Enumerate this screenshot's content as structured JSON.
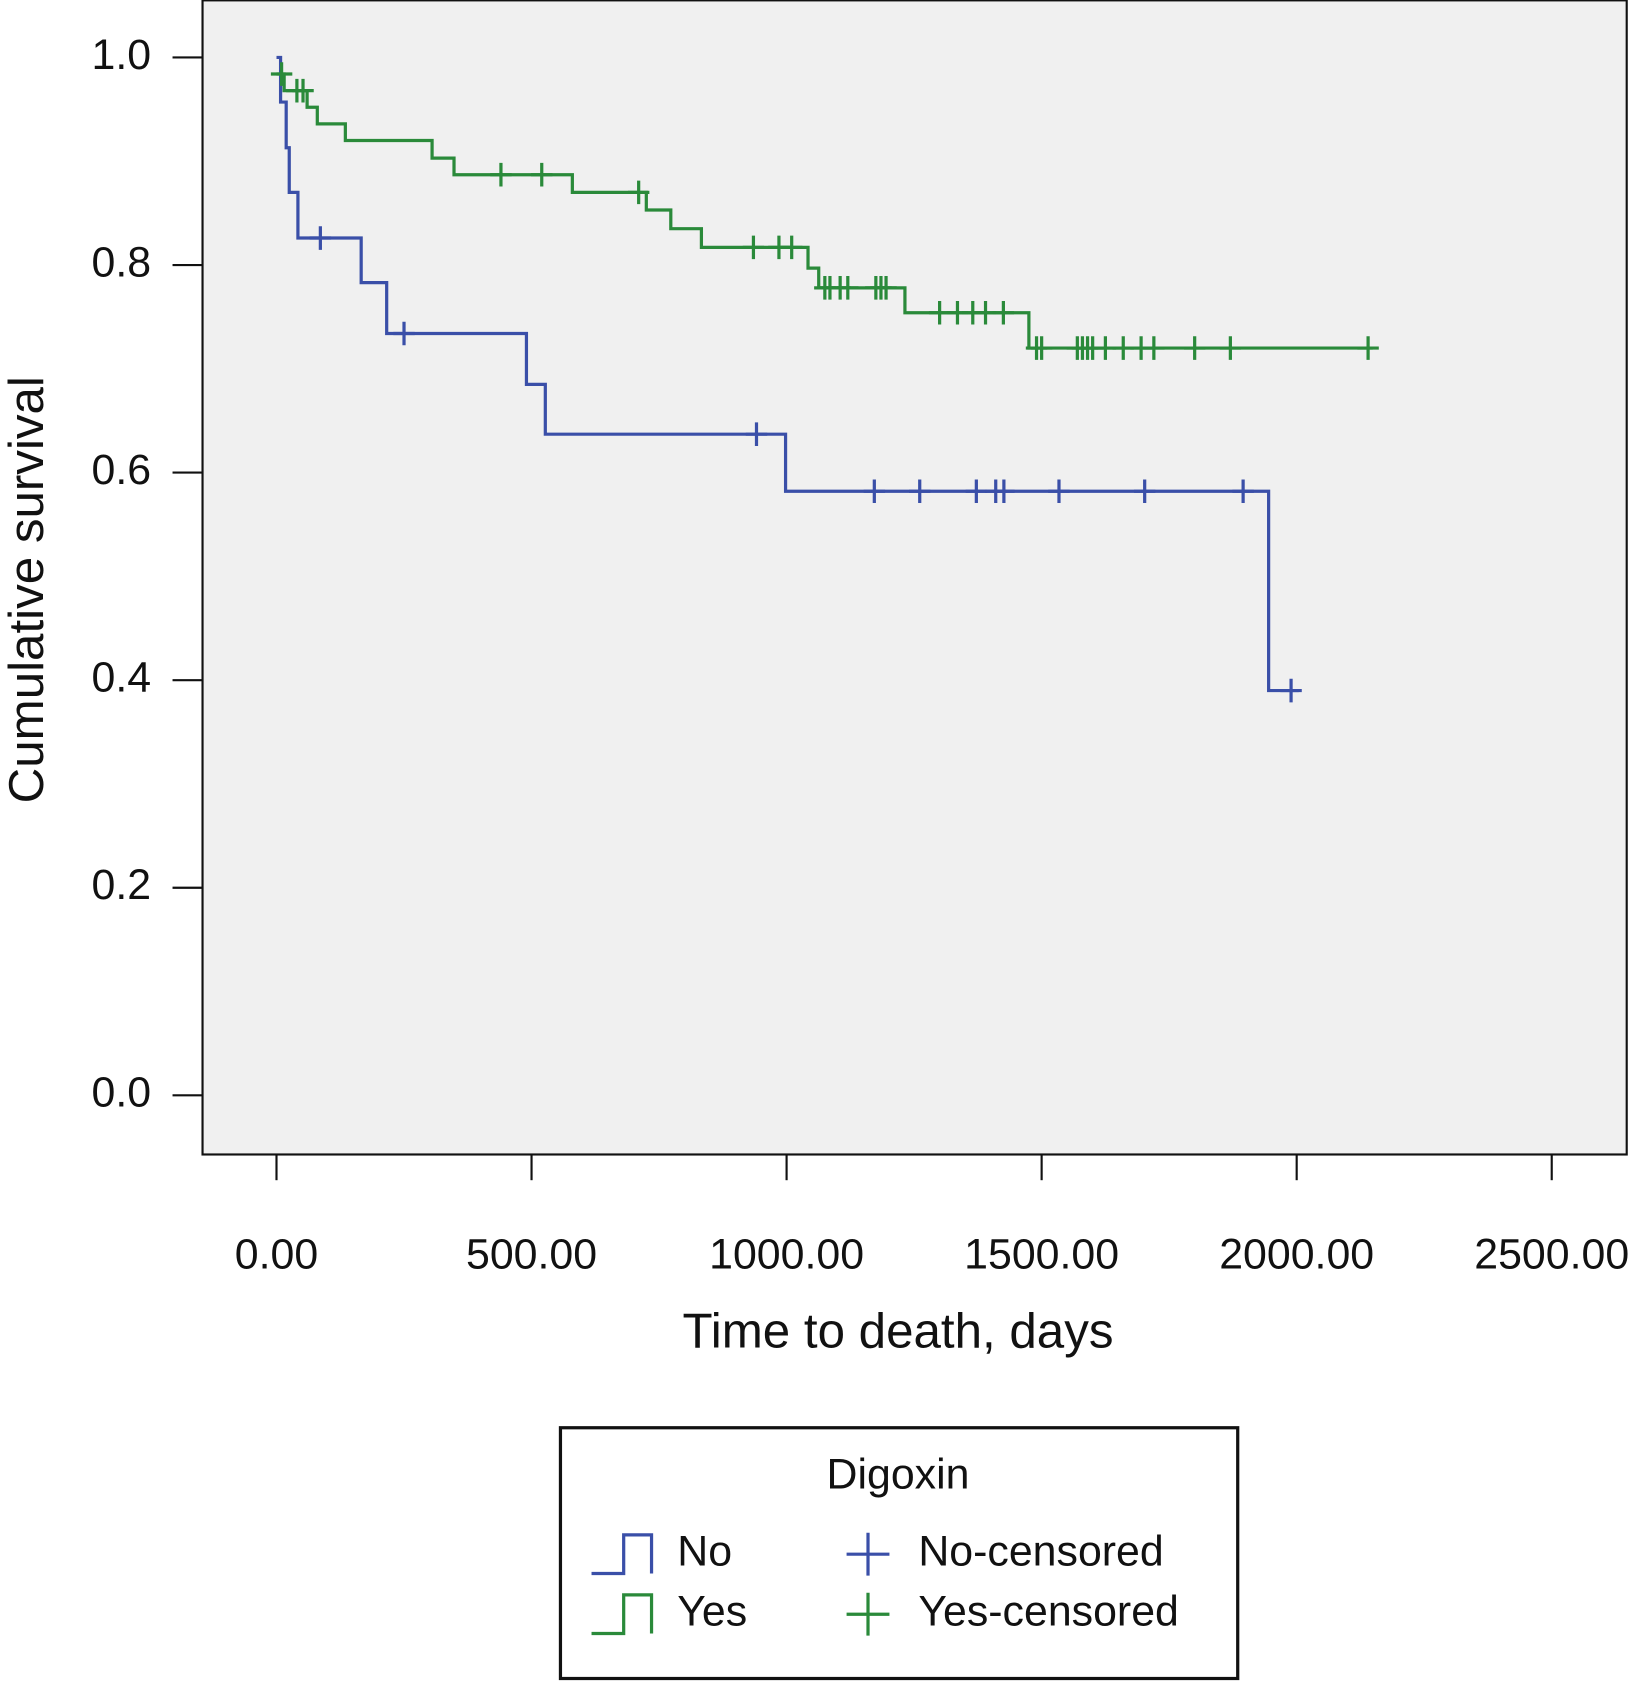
{
  "chart_data": {
    "type": "line",
    "step": true,
    "x_label": "Time to death, days",
    "y_label": "Cumulative survival",
    "legend_title": "Digoxin",
    "xlim": [
      -145,
      2647
    ],
    "ylim": [
      -0.057,
      1.055
    ],
    "xticks": [
      {
        "value": 0,
        "label": "0.00"
      },
      {
        "value": 500,
        "label": "500.00"
      },
      {
        "value": 1000,
        "label": "1000.00"
      },
      {
        "value": 1500,
        "label": "1500.00"
      },
      {
        "value": 2000,
        "label": "2000.00"
      },
      {
        "value": 2500,
        "label": "2500.00"
      }
    ],
    "yticks": [
      {
        "value": 0,
        "label": "0.0"
      },
      0.2,
      0.4,
      0.6,
      0.8,
      {
        "value": 1,
        "label": "1.0"
      }
    ],
    "background": "#f0f0f0",
    "series": [
      {
        "name": "No",
        "style": "step",
        "color": "#3a4fa8",
        "x": [
          0,
          8,
          19,
          25,
          42,
          166,
          216,
          490,
          527,
          998,
          1945,
          2004
        ],
        "values": [
          1.0,
          0.957,
          0.913,
          0.87,
          0.826,
          0.783,
          0.734,
          0.685,
          0.637,
          0.582,
          0.39,
          0.39
        ]
      },
      {
        "name": "Yes",
        "style": "step",
        "color": "#2a8a3a",
        "x": [
          0,
          15,
          60,
          80,
          135,
          305,
          348,
          580,
          725,
          773,
          833,
          1042,
          1063,
          1232,
          1475,
          2149
        ],
        "values": [
          0.984,
          0.968,
          0.952,
          0.936,
          0.92,
          0.903,
          0.887,
          0.87,
          0.853,
          0.835,
          0.817,
          0.797,
          0.778,
          0.754,
          0.72,
          0.72
        ]
      },
      {
        "name": "No-censored",
        "style": "censored",
        "color": "#3a4fa8",
        "x": [
          86,
          250,
          941,
          1172,
          1261,
          1372,
          1410,
          1426,
          1534,
          1702,
          1895,
          1989
        ],
        "values": [
          0.826,
          0.734,
          0.637,
          0.582,
          0.582,
          0.582,
          0.582,
          0.582,
          0.582,
          0.582,
          0.582,
          0.39
        ]
      },
      {
        "name": "Yes-censored",
        "style": "censored",
        "color": "#2a8a3a",
        "x": [
          10,
          40,
          52,
          440,
          520,
          710,
          935,
          985,
          1010,
          1075,
          1085,
          1105,
          1120,
          1175,
          1185,
          1195,
          1300,
          1335,
          1365,
          1390,
          1425,
          1490,
          1500,
          1570,
          1580,
          1590,
          1600,
          1625,
          1660,
          1695,
          1720,
          1800,
          1870,
          2140
        ],
        "values": [
          0.984,
          0.968,
          0.968,
          0.887,
          0.887,
          0.87,
          0.817,
          0.817,
          0.817,
          0.778,
          0.778,
          0.778,
          0.778,
          0.778,
          0.778,
          0.778,
          0.754,
          0.754,
          0.754,
          0.754,
          0.754,
          0.72,
          0.72,
          0.72,
          0.72,
          0.72,
          0.72,
          0.72,
          0.72,
          0.72,
          0.72,
          0.72,
          0.72,
          0.72
        ]
      }
    ]
  }
}
